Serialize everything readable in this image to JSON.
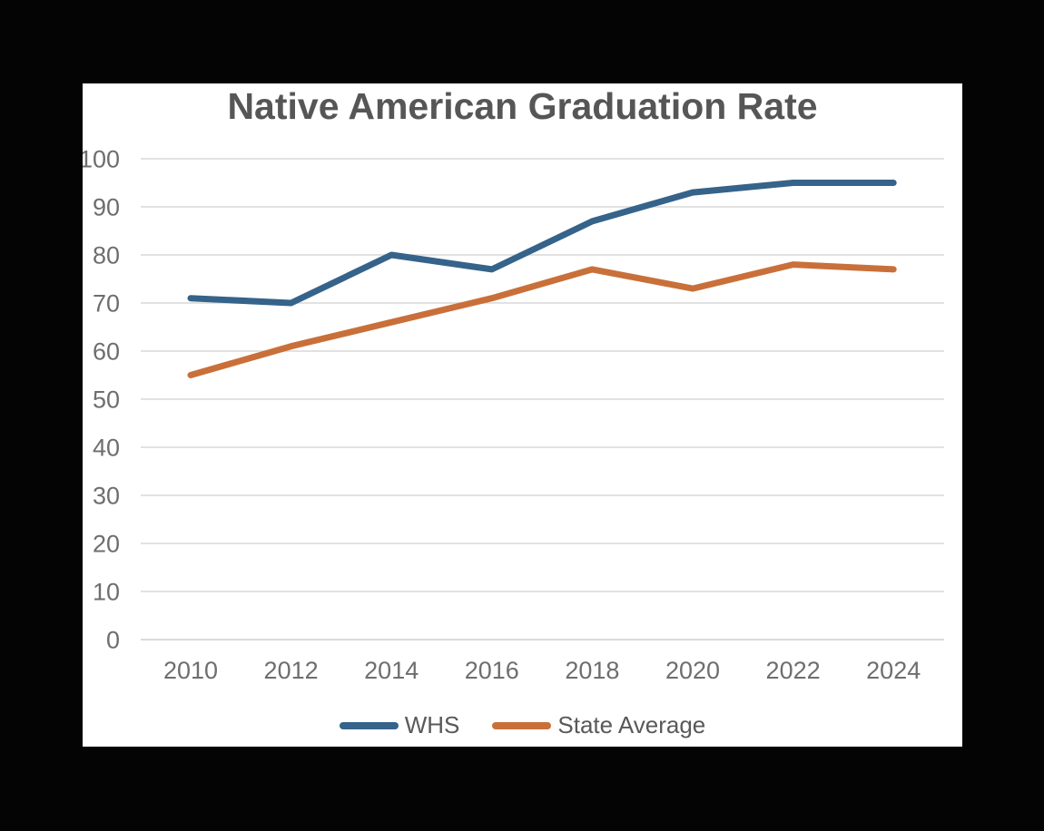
{
  "page": {
    "background_color": "#040404",
    "card_background": "#ffffff"
  },
  "chart_data": {
    "type": "line",
    "title": "Native American Graduation Rate",
    "title_color": "#565656",
    "categories": [
      "2010",
      "2012",
      "2014",
      "2016",
      "2018",
      "2020",
      "2022",
      "2024"
    ],
    "series": [
      {
        "name": "WHS",
        "color": "#35638A",
        "values": [
          71,
          70,
          80,
          77,
          87,
          93,
          95,
          95
        ]
      },
      {
        "name": "State Average",
        "color": "#C9703A",
        "values": [
          55,
          61,
          66,
          71,
          77,
          73,
          78,
          77
        ]
      }
    ],
    "xlabel": "",
    "ylabel": "",
    "ylim": [
      0,
      100
    ],
    "yticks": [
      0,
      10,
      20,
      30,
      40,
      50,
      60,
      70,
      80,
      90,
      100
    ],
    "grid": "horizontal",
    "gridline_color": "#d9d9d9",
    "tick_label_color": "#6e6e6e",
    "legend_position": "bottom",
    "legend_text_color": "#595959"
  }
}
